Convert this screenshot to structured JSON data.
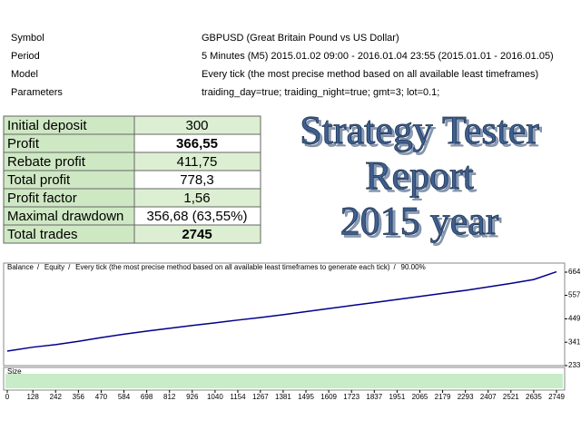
{
  "header": [
    {
      "label": "Symbol",
      "value": "GBPUSD (Great Britain Pound vs US Dollar)"
    },
    {
      "label": "Period",
      "value": "5 Minutes (M5) 2015.01.02 09:00 - 2016.01.04 23:55 (2015.01.01 - 2016.01.05)"
    },
    {
      "label": "Model",
      "value": "Every tick (the most precise method based on all available least timeframes)"
    },
    {
      "label": "Parameters",
      "value": "traiding_day=true; traiding_night=true; gmt=3; lot=0.1;"
    }
  ],
  "table": {
    "rows": [
      {
        "label": "Initial deposit",
        "value": "300",
        "bold": false
      },
      {
        "label": "Profit",
        "value": "366,55",
        "bold": true
      },
      {
        "label": "Rebate profit",
        "value": "411,75",
        "bold": false
      },
      {
        "label": "Total profit",
        "value": "778,3",
        "bold": false
      },
      {
        "label": "Profit factor",
        "value": "1,56",
        "bold": false
      },
      {
        "label": "Maximal drawdown",
        "value": "356,68 (63,55%)",
        "bold": false
      },
      {
        "label": "Total trades",
        "value": "2745",
        "bold": true
      }
    ]
  },
  "banner": [
    "Strategy Tester",
    "Report",
    "2015 year"
  ],
  "chart_data": {
    "type": "line",
    "legend": {
      "balance": "Balance",
      "equity": "Equity",
      "method": "Every tick (the most precise method based on all available least timeframes to generate each tick)",
      "quality": "90.00%"
    },
    "size_label": "Size",
    "x": [
      0,
      128,
      242,
      356,
      470,
      584,
      698,
      812,
      926,
      1040,
      1154,
      1267,
      1381,
      1495,
      1609,
      1723,
      1837,
      1951,
      2065,
      2179,
      2293,
      2407,
      2521,
      2635,
      2749
    ],
    "series": [
      {
        "name": "Balance",
        "color": "#00008b",
        "values": [
          300,
          318,
          330,
          345,
          362,
          378,
          392,
          405,
          418,
          430,
          443,
          455,
          468,
          482,
          496,
          510,
          524,
          538,
          552,
          566,
          580,
          596,
          612,
          630,
          666
        ]
      }
    ],
    "xlim": [
      0,
      2749
    ],
    "xticks": [
      0,
      128,
      242,
      356,
      470,
      584,
      698,
      812,
      926,
      1040,
      1154,
      1267,
      1381,
      1495,
      1609,
      1723,
      1837,
      1951,
      2065,
      2179,
      2293,
      2407,
      2521,
      2635,
      2749
    ],
    "ylim": [
      233,
      664
    ],
    "yticks": [
      233,
      341,
      449,
      557,
      664
    ]
  }
}
